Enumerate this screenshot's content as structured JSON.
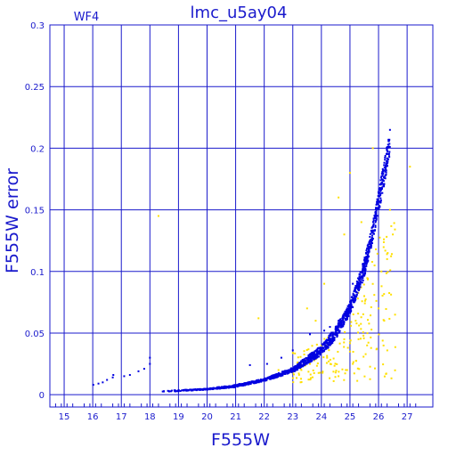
{
  "chart_data": {
    "type": "scatter",
    "title": "lmc_u5ay04",
    "panel_label": "WF4",
    "xlabel": "F555W",
    "ylabel": "F555W error",
    "xlim": [
      14.5,
      27.9
    ],
    "ylim": [
      -0.01,
      0.3
    ],
    "x_ticks": [
      15,
      16,
      17,
      18,
      19,
      20,
      21,
      22,
      23,
      24,
      25,
      26,
      27
    ],
    "y_ticks": [
      0,
      0.05,
      0.1,
      0.15,
      0.2,
      0.25,
      0.3
    ],
    "x_tick_labels": [
      "15",
      "16",
      "17",
      "18",
      "19",
      "20",
      "21",
      "22",
      "23",
      "24",
      "25",
      "26",
      "27"
    ],
    "y_tick_labels": [
      "0",
      "0.05",
      "0.1",
      "0.15",
      "0.2",
      "0.25",
      "0.3"
    ],
    "grid": true,
    "legend": "none",
    "colors": {
      "axes": "#1a1acc",
      "primary": "#0000e0",
      "secondary": "#ffe000"
    },
    "series": [
      {
        "color": "#0000e0",
        "points": [
          [
            16.02,
            0.008
          ],
          [
            16.2,
            0.009
          ],
          [
            16.35,
            0.01
          ],
          [
            16.5,
            0.012
          ],
          [
            16.7,
            0.014
          ],
          [
            16.72,
            0.016
          ],
          [
            17.1,
            0.015
          ],
          [
            17.3,
            0.016
          ],
          [
            17.6,
            0.019
          ],
          [
            17.8,
            0.021
          ],
          [
            18.0,
            0.025
          ],
          [
            18.0,
            0.03
          ],
          [
            21.5,
            0.024
          ],
          [
            22.1,
            0.025
          ],
          [
            22.6,
            0.03
          ],
          [
            23.0,
            0.036
          ],
          [
            23.6,
            0.049
          ],
          [
            24.1,
            0.052
          ],
          [
            24.3,
            0.055
          ],
          [
            24.6,
            0.06
          ],
          [
            24.9,
            0.07
          ],
          [
            25.1,
            0.09
          ]
        ],
        "trend": {
          "x_range": [
            18.4,
            26.4
          ],
          "upper_curve": [
            [
              18.4,
              0.003
            ],
            [
              20,
              0.005
            ],
            [
              21,
              0.008
            ],
            [
              22,
              0.013
            ],
            [
              23,
              0.022
            ],
            [
              24,
              0.04
            ],
            [
              24.5,
              0.055
            ],
            [
              25,
              0.075
            ],
            [
              25.5,
              0.11
            ],
            [
              25.8,
              0.14
            ],
            [
              26.2,
              0.19
            ],
            [
              26.4,
              0.215
            ]
          ],
          "lower_curve": [
            [
              18.4,
              0.002
            ],
            [
              20,
              0.004
            ],
            [
              21,
              0.006
            ],
            [
              22,
              0.011
            ],
            [
              23,
              0.018
            ],
            [
              24,
              0.032
            ],
            [
              24.5,
              0.045
            ],
            [
              25,
              0.065
            ],
            [
              25.5,
              0.095
            ],
            [
              25.8,
              0.125
            ],
            [
              26.2,
              0.17
            ],
            [
              26.4,
              0.195
            ]
          ],
          "count": 1400
        }
      },
      {
        "color": "#ffe000",
        "points": [
          [
            18.3,
            0.145
          ],
          [
            21.8,
            0.062
          ],
          [
            22.5,
            0.02
          ],
          [
            23.0,
            0.018
          ],
          [
            23.3,
            0.02
          ],
          [
            23.6,
            0.025
          ],
          [
            23.8,
            0.06
          ],
          [
            24.0,
            0.04
          ],
          [
            24.2,
            0.03
          ],
          [
            24.4,
            0.05
          ],
          [
            24.5,
            0.018
          ],
          [
            24.6,
            0.015
          ],
          [
            24.8,
            0.045
          ],
          [
            24.9,
            0.02
          ],
          [
            25.0,
            0.035
          ],
          [
            25.1,
            0.025
          ],
          [
            25.2,
            0.06
          ],
          [
            25.3,
            0.045
          ],
          [
            25.4,
            0.14
          ],
          [
            25.5,
            0.08
          ],
          [
            25.6,
            0.04
          ],
          [
            25.7,
            0.12
          ],
          [
            25.8,
            0.2
          ],
          [
            26.0,
            0.07
          ],
          [
            26.1,
            0.1
          ],
          [
            26.2,
            0.06
          ],
          [
            26.3,
            0.11
          ],
          [
            26.4,
            0.15
          ],
          [
            26.5,
            0.13
          ],
          [
            27.1,
            0.185
          ],
          [
            24.8,
            0.13
          ],
          [
            24.6,
            0.16
          ],
          [
            25.0,
            0.18
          ],
          [
            23.5,
            0.07
          ],
          [
            24.1,
            0.09
          ]
        ],
        "extra_scatter": {
          "x_range": [
            23.0,
            26.6
          ],
          "y_range": [
            0.01,
            0.14
          ],
          "count": 180
        }
      }
    ]
  }
}
